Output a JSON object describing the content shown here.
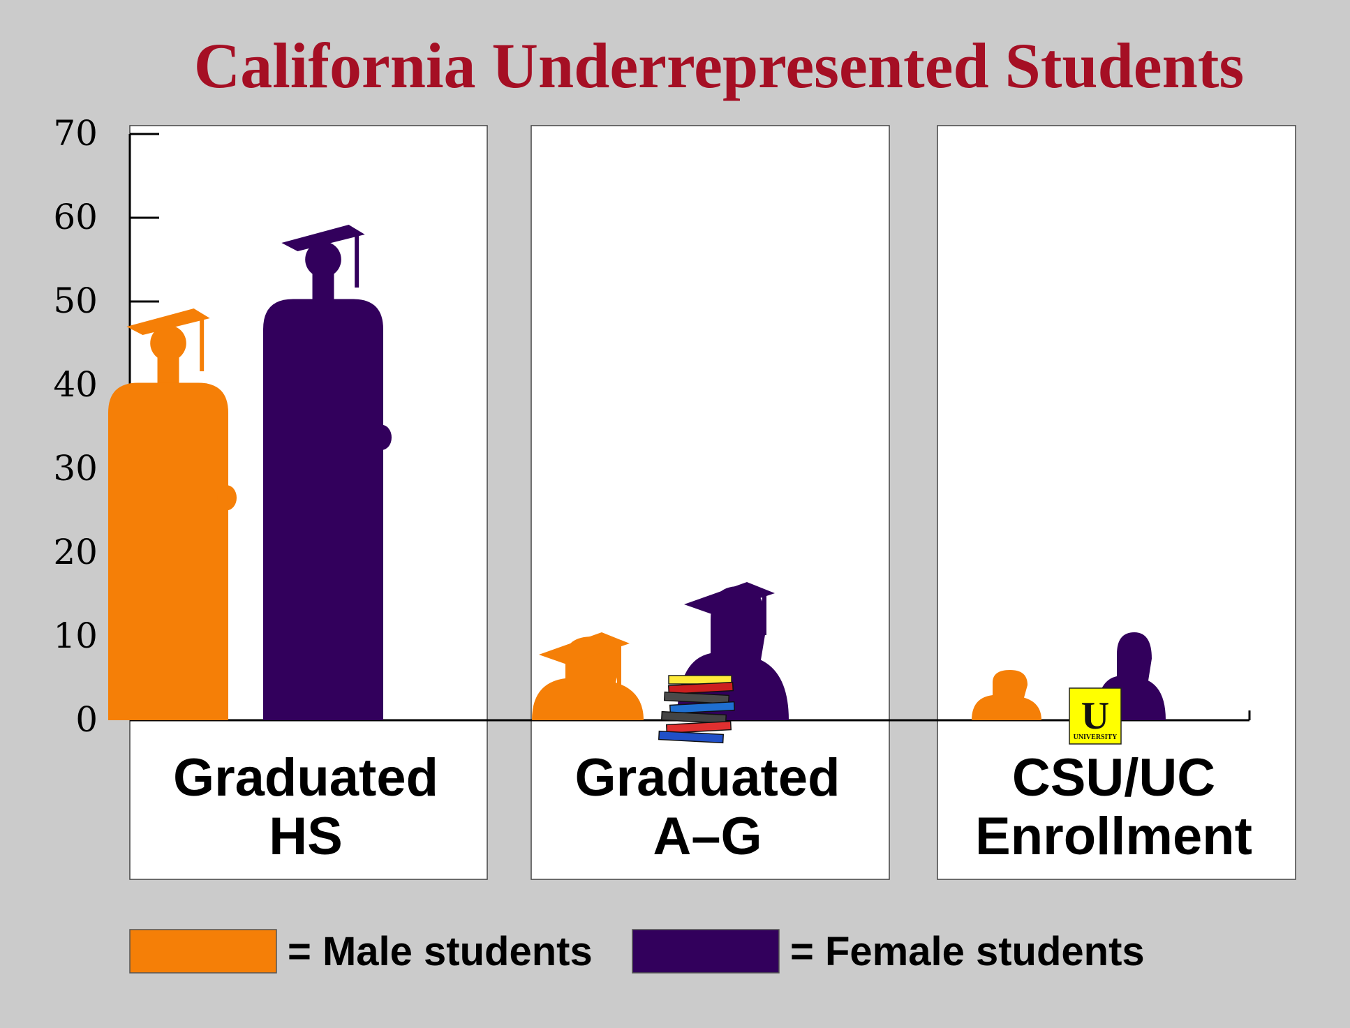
{
  "colors": {
    "background": "#cbcbcb",
    "panel": "#ffffff",
    "title": "#a50f24",
    "male": "#f57f07",
    "female": "#32005c",
    "axis": "#000000",
    "university_badge": "#ffff00"
  },
  "decorations": {
    "male_icon": "graduate-silhouette-icon",
    "female_icon": "graduate-silhouette-icon",
    "ag_icon": "book-stack-icon",
    "enrollment_icon": "university-badge-icon",
    "badge_letter": "U",
    "badge_text": "UNIVERSITY"
  },
  "chart_data": {
    "type": "bar",
    "title": "California Underrepresented Students",
    "categories": [
      [
        "Graduated",
        "HS"
      ],
      [
        "Graduated",
        "A–G"
      ],
      [
        "CSU/UC",
        "Enrollment"
      ]
    ],
    "series": [
      {
        "name": "Male students",
        "values": [
          49,
          10,
          6
        ],
        "color": "#f57f07"
      },
      {
        "name": "Female students",
        "values": [
          59,
          16,
          10.5
        ],
        "color": "#32005c"
      }
    ],
    "ylim": [
      0,
      70
    ],
    "yticks": [
      0,
      10,
      20,
      30,
      40,
      50,
      60,
      70
    ],
    "xlabel": "",
    "ylabel": "",
    "grid": false,
    "legend": {
      "placement": "bottom",
      "prefix": "= ",
      "entries": [
        "Male students",
        "Female students"
      ]
    }
  }
}
